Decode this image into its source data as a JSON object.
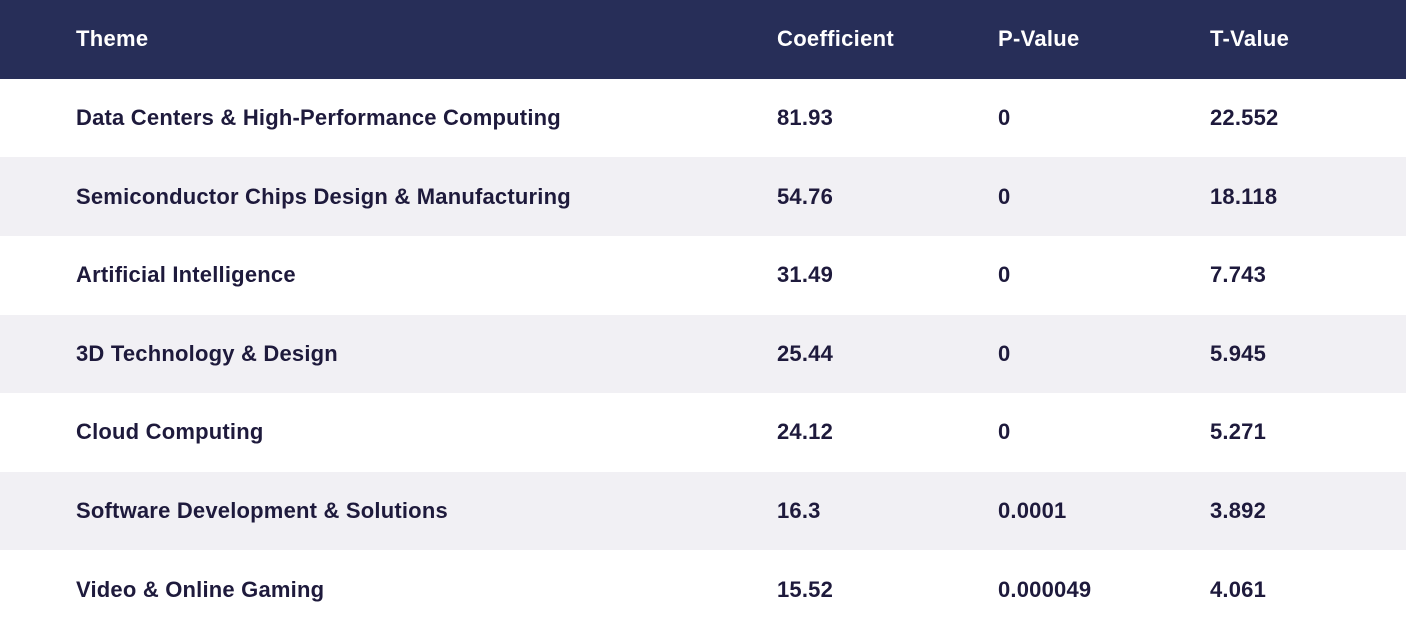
{
  "table": {
    "columns": [
      {
        "key": "theme",
        "label": "Theme"
      },
      {
        "key": "coefficient",
        "label": "Coefficient"
      },
      {
        "key": "p_value",
        "label": "P-Value"
      },
      {
        "key": "t_value",
        "label": "T-Value"
      }
    ],
    "rows": [
      {
        "theme": "Data Centers & High-Performance Computing",
        "coefficient": "81.93",
        "p_value": "0",
        "t_value": "22.552"
      },
      {
        "theme": "Semiconductor Chips Design & Manufacturing",
        "coefficient": "54.76",
        "p_value": "0",
        "t_value": "18.118"
      },
      {
        "theme": "Artificial Intelligence",
        "coefficient": "31.49",
        "p_value": "0",
        "t_value": "7.743"
      },
      {
        "theme": "3D Technology & Design",
        "coefficient": "25.44",
        "p_value": "0",
        "t_value": "5.945"
      },
      {
        "theme": "Cloud Computing",
        "coefficient": "24.12",
        "p_value": "0",
        "t_value": "5.271"
      },
      {
        "theme": "Software Development & Solutions",
        "coefficient": "16.3",
        "p_value": "0.0001",
        "t_value": "3.892"
      },
      {
        "theme": "Video & Online Gaming",
        "coefficient": "15.52",
        "p_value": "0.000049",
        "t_value": "4.061"
      }
    ]
  },
  "colors": {
    "header_bg": "#272e58",
    "header_text": "#ffffff",
    "body_text": "#1e1a3c",
    "row_stripe": "#f1f0f4",
    "row_alt": "#ffffff"
  },
  "chart_data": {
    "type": "table",
    "title": "",
    "columns": [
      "Theme",
      "Coefficient",
      "P-Value",
      "T-Value"
    ],
    "categories": [
      "Data Centers & High-Performance Computing",
      "Semiconductor Chips Design & Manufacturing",
      "Artificial Intelligence",
      "3D Technology & Design",
      "Cloud Computing",
      "Software Development & Solutions",
      "Video & Online Gaming"
    ],
    "series": [
      {
        "name": "Coefficient",
        "values": [
          81.93,
          54.76,
          31.49,
          25.44,
          24.12,
          16.3,
          15.52
        ]
      },
      {
        "name": "P-Value",
        "values": [
          0,
          0,
          0,
          0,
          0,
          0.0001,
          4.9e-05
        ]
      },
      {
        "name": "T-Value",
        "values": [
          22.552,
          18.118,
          7.743,
          5.945,
          5.271,
          3.892,
          4.061
        ]
      }
    ],
    "layout_hints": {
      "header_style": "dark navy band, white bold text",
      "striping": "alternating light-gray / white rows starting with gray",
      "grid": false
    }
  }
}
